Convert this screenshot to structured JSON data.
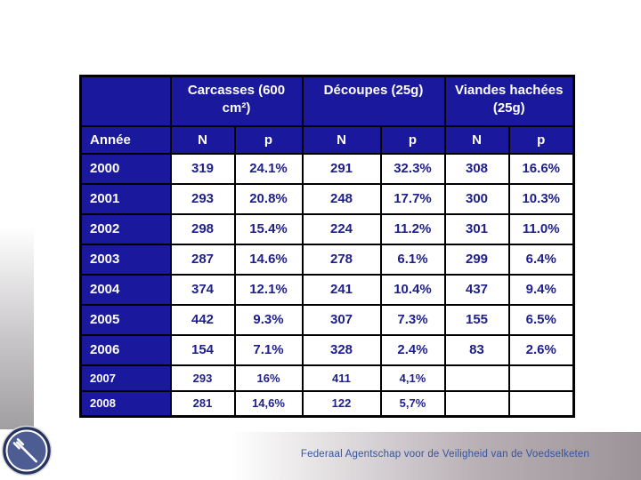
{
  "slide": {
    "footer_text": "Federaal Agentschap voor de Veiligheid van de Voedselketen"
  },
  "colors": {
    "header_bg_navy": "#1a189c",
    "header_text": "#ffffff",
    "value_text_navy": "#1f1f8a",
    "table_border": "#000000",
    "footer_blue": "#35539f",
    "left_band_gray": "#a19ea1",
    "bottom_band_gray": "#9c9399",
    "logo_outer_navy": "#25335f",
    "logo_inner_blue": "#4d5c93"
  },
  "table": {
    "corner_label": "",
    "group_headers": [
      "Carcasses (600 cm²)",
      "Découpes (25g)",
      "Viandes hachées (25g)"
    ],
    "sub_headers": [
      "Année",
      "N",
      "p",
      "N",
      "p",
      "N",
      "p"
    ],
    "rows": [
      {
        "year": "2000",
        "values": [
          "319",
          "24.1%",
          "291",
          "32.3%",
          "308",
          "16.6%"
        ],
        "small": false
      },
      {
        "year": "2001",
        "values": [
          "293",
          "20.8%",
          "248",
          "17.7%",
          "300",
          "10.3%"
        ],
        "small": false
      },
      {
        "year": "2002",
        "values": [
          "298",
          "15.4%",
          "224",
          "11.2%",
          "301",
          "11.0%"
        ],
        "small": false
      },
      {
        "year": "2003",
        "values": [
          "287",
          "14.6%",
          "278",
          "6.1%",
          "299",
          "6.4%"
        ],
        "small": false
      },
      {
        "year": "2004",
        "values": [
          "374",
          "12.1%",
          "241",
          "10.4%",
          "437",
          "9.4%"
        ],
        "small": false
      },
      {
        "year": "2005",
        "values": [
          "442",
          "9.3%",
          "307",
          "7.3%",
          "155",
          "6.5%"
        ],
        "small": false
      },
      {
        "year": "2006",
        "values": [
          "154",
          "7.1%",
          "328",
          "2.4%",
          "83",
          "2.6%"
        ],
        "small": false
      },
      {
        "year": "2007",
        "values": [
          "293",
          "16%",
          "411",
          "4,1%",
          "",
          ""
        ],
        "small": true
      },
      {
        "year": "2008",
        "values": [
          "281",
          "14,6%",
          "122",
          "5,7%",
          "",
          ""
        ],
        "small": true
      }
    ]
  },
  "chart_data": {
    "type": "table",
    "title": "",
    "row_header": "Année",
    "column_groups": [
      "Carcasses (600 cm²)",
      "Découpes (25g)",
      "Viandes hachées (25g)"
    ],
    "columns_per_group": [
      "N",
      "p"
    ],
    "years": [
      2000,
      2001,
      2002,
      2003,
      2004,
      2005,
      2006,
      2007,
      2008
    ],
    "series": [
      {
        "name": "Carcasses (600 cm²) N",
        "values": [
          319,
          293,
          298,
          287,
          374,
          442,
          154,
          293,
          281
        ]
      },
      {
        "name": "Carcasses (600 cm²) p",
        "values": [
          "24.1%",
          "20.8%",
          "15.4%",
          "14.6%",
          "12.1%",
          "9.3%",
          "7.1%",
          "16%",
          "14,6%"
        ]
      },
      {
        "name": "Découpes (25g) N",
        "values": [
          291,
          248,
          224,
          278,
          241,
          307,
          328,
          411,
          122
        ]
      },
      {
        "name": "Découpes (25g) p",
        "values": [
          "32.3%",
          "17.7%",
          "11.2%",
          "6.1%",
          "10.4%",
          "7.3%",
          "2.4%",
          "4,1%",
          "5,7%"
        ]
      },
      {
        "name": "Viandes hachées (25g) N",
        "values": [
          308,
          300,
          301,
          299,
          437,
          155,
          83,
          null,
          null
        ]
      },
      {
        "name": "Viandes hachées (25g) p",
        "values": [
          "16.6%",
          "10.3%",
          "11.0%",
          "6.4%",
          "9.4%",
          "6.5%",
          "2.6%",
          "",
          ""
        ]
      }
    ]
  }
}
